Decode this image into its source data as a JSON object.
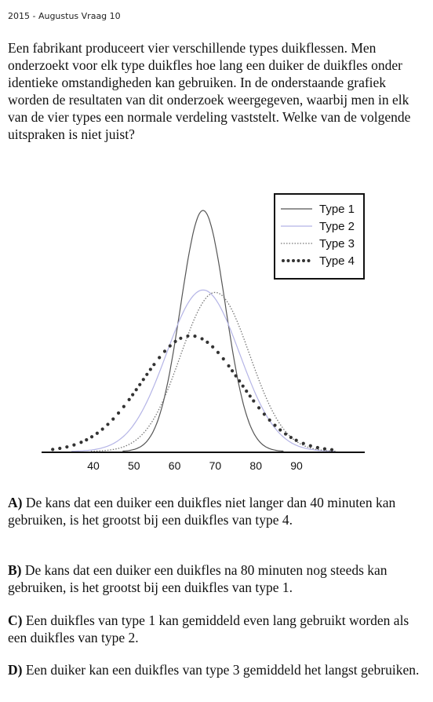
{
  "header": "2015 - Augustus Vraag 10",
  "question": "Een fabrikant produceert vier verschillende types duikflessen. Men onderzoekt voor elk type duikfles hoe lang een duiker de duikfles onder identieke omstandigheden kan gebruiken. In de onderstaande grafiek worden de resultaten van dit onderzoek weergegeven, waarbij men in elk van de vier types een normale verdeling vaststelt. Welke van de volgende uitspraken is niet juist?",
  "chart_data": {
    "type": "line",
    "title": "",
    "xlabel": "",
    "ylabel": "",
    "xlim": [
      30,
      100
    ],
    "x_ticks": [
      40,
      50,
      60,
      70,
      80,
      90
    ],
    "grid": false,
    "legend_position": "top-right",
    "series": [
      {
        "name": "Type 1",
        "mean": 67,
        "sd": 5.5,
        "peak": 1.0,
        "style": "solid",
        "color": "#555555"
      },
      {
        "name": "Type 2",
        "mean": 67,
        "sd": 9,
        "peak": 0.67,
        "style": "solid",
        "color": "#b4b4e6"
      },
      {
        "name": "Type 3",
        "mean": 70,
        "sd": 8.5,
        "peak": 0.66,
        "style": "dotted",
        "color": "#777777"
      },
      {
        "name": "Type 4",
        "mean": 64,
        "sd": 12,
        "peak": 0.48,
        "style": "dots",
        "color": "#333333"
      }
    ]
  },
  "answers": {
    "a": {
      "letter": "A)",
      "text": " De kans dat een duiker een duikfles niet langer dan 40 minuten kan gebruiken, is het grootst bij een duikfles van type 4."
    },
    "b": {
      "letter": "B)",
      "text": " De kans dat een duiker een duikfles na 80 minuten nog steeds kan gebruiken, is het grootst bij een duikfles van type 1."
    },
    "c": {
      "letter": "C)",
      "text": " Een duikfles van type 1 kan gemiddeld even lang gebruikt worden als een duikfles van type 2."
    },
    "d": {
      "letter": "D)",
      "text": " Een duiker kan een duikfles van type 3 gemiddeld het langst gebruiken."
    }
  }
}
